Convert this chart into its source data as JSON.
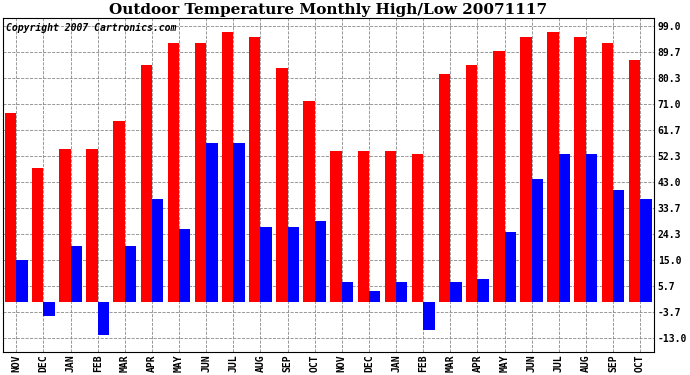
{
  "title": "Outdoor Temperature Monthly High/Low 20071117",
  "copyright": "Copyright 2007 Cartronics.com",
  "categories": [
    "NOV",
    "DEC",
    "JAN",
    "FEB",
    "MAR",
    "APR",
    "MAY",
    "JUN",
    "JUL",
    "AUG",
    "SEP",
    "OCT",
    "NOV",
    "DEC",
    "JAN",
    "FEB",
    "MAR",
    "APR",
    "MAY",
    "JUN",
    "JUL",
    "AUG",
    "SEP",
    "OCT"
  ],
  "highs": [
    68,
    48,
    55,
    55,
    65,
    85,
    93,
    93,
    97,
    95,
    84,
    72,
    54,
    54,
    54,
    53,
    82,
    85,
    90,
    95,
    97,
    95,
    93,
    87
  ],
  "lows": [
    15,
    -5,
    20,
    -12,
    20,
    37,
    26,
    57,
    57,
    27,
    27,
    29,
    7,
    4,
    7,
    -10,
    7,
    8,
    25,
    44,
    53,
    53,
    40,
    37
  ],
  "bar_color_high": "#ff0000",
  "bar_color_low": "#0000ff",
  "bg_color": "#ffffff",
  "grid_color": "#888888",
  "ytick_labels": [
    "-13.0",
    "-3.7",
    "5.7",
    "15.0",
    "24.3",
    "33.7",
    "43.0",
    "52.3",
    "61.7",
    "71.0",
    "80.3",
    "89.7",
    "99.0"
  ],
  "ytick_values": [
    -13.0,
    -3.7,
    5.7,
    15.0,
    24.3,
    33.7,
    43.0,
    52.3,
    61.7,
    71.0,
    80.3,
    89.7,
    99.0
  ],
  "ylim": [
    -18,
    102
  ],
  "xlim_lo": -0.5,
  "xlim_hi": 23.5,
  "bar_width": 0.42,
  "figwidth": 6.9,
  "figheight": 3.75,
  "dpi": 100,
  "title_fontsize": 11,
  "tick_fontsize": 7,
  "copyright_fontsize": 7,
  "border_color": "#000000"
}
